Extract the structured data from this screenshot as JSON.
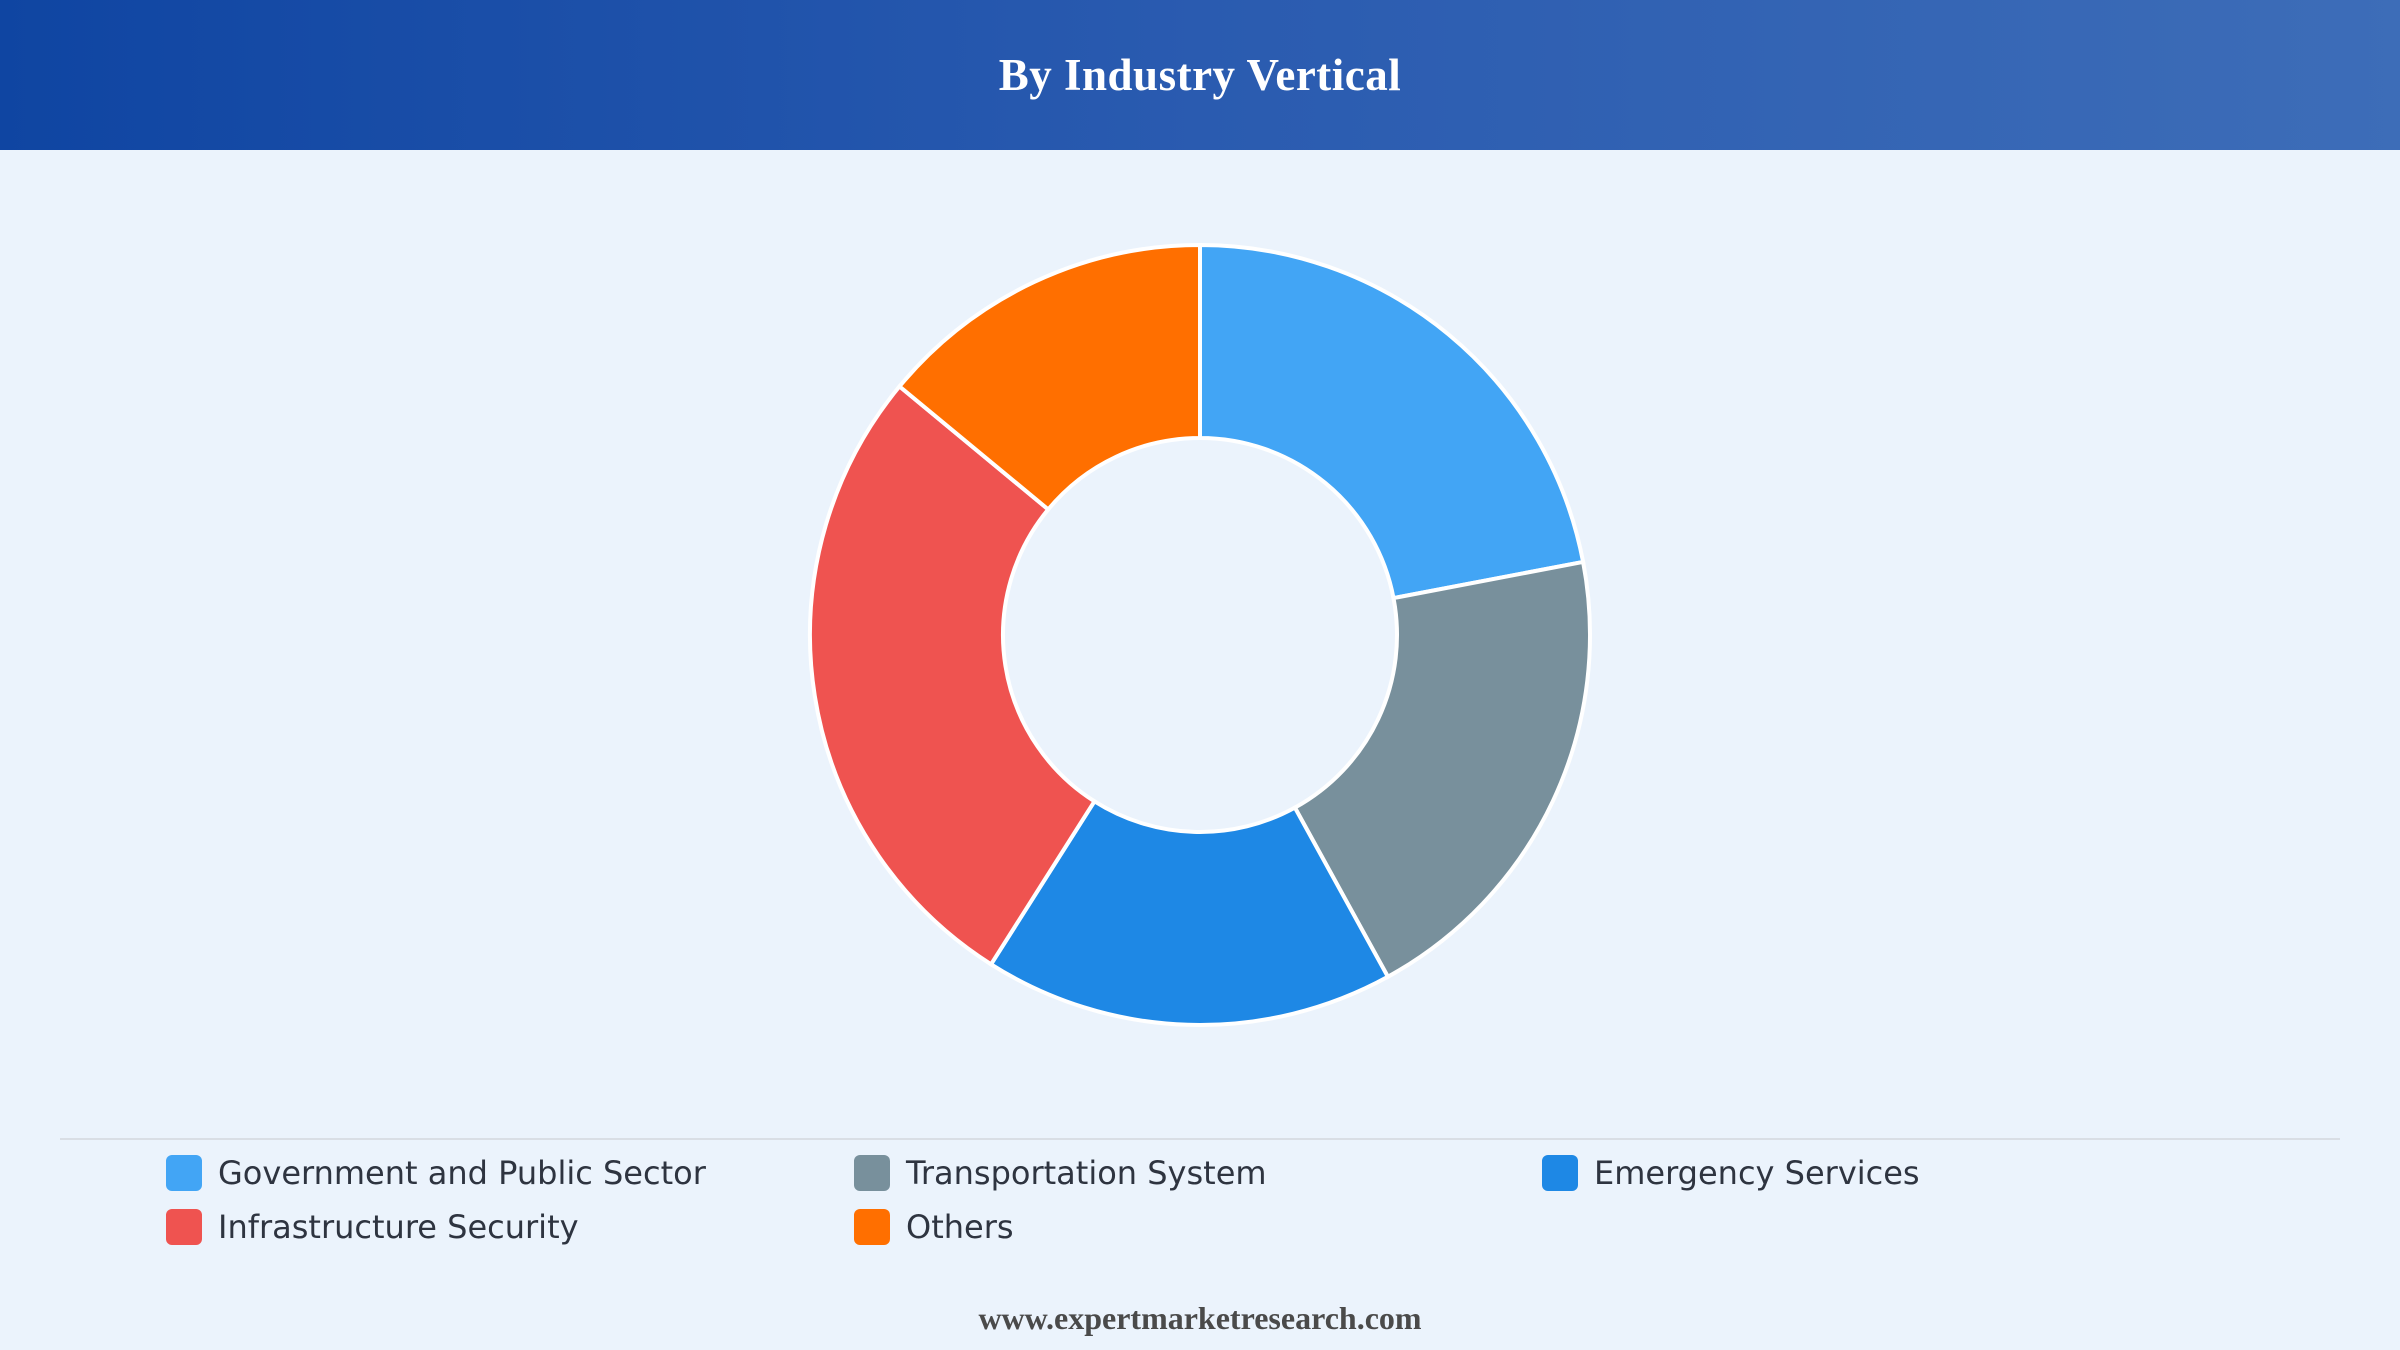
{
  "header": {
    "title": "By Industry Vertical"
  },
  "chart_data": {
    "type": "pie",
    "title": "By Industry Vertical",
    "donut": true,
    "legend_position": "bottom",
    "categories": [
      "Government and Public Sector",
      "Transportation System",
      "Emergency Services",
      "Infrastructure Security",
      "Others"
    ],
    "values": [
      22,
      20,
      17,
      27,
      14
    ],
    "colors": [
      "#42a5f5",
      "#78909c",
      "#1e88e5",
      "#ef5350",
      "#ff6f00"
    ]
  },
  "footer": {
    "text": "www.expertmarketresearch.com"
  }
}
